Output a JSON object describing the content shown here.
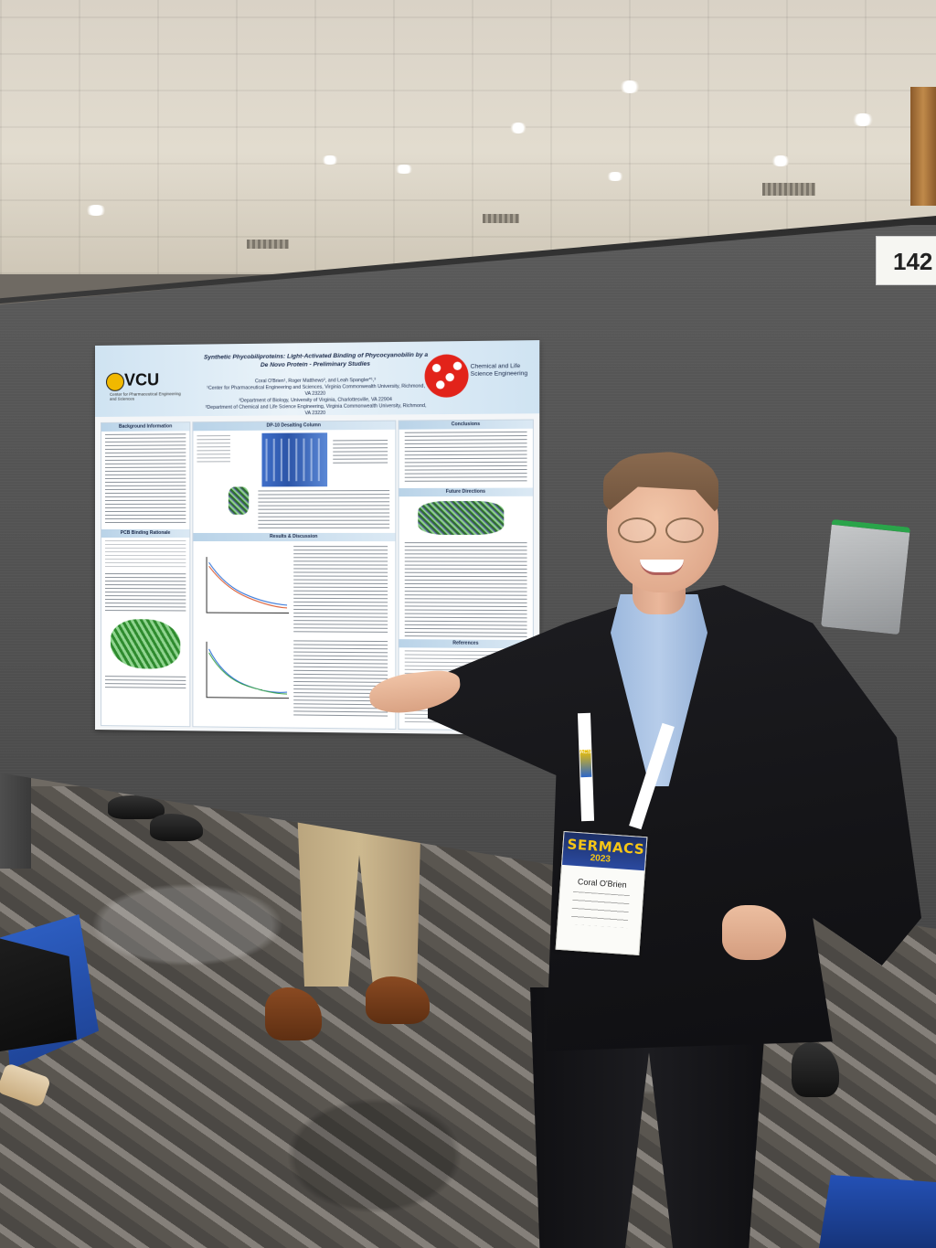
{
  "scene": {
    "board_number": "142"
  },
  "poster": {
    "title": "Synthetic Phycobiliproteins: Light-Activated Binding of Phycocyanobilin by a De Novo Protein - Preliminary Studies",
    "authors": "Coral O'Brien¹, Roger Matthews², and Leah Spangler*¹,³",
    "affiliation_1": "¹Center for Pharmaceutical Engineering and Sciences, Virginia Commonwealth University, Richmond, VA 23220",
    "affiliation_2": "²Department of Biology, University of Virginia, Charlottesville, VA 22904",
    "affiliation_3": "³Department of Chemical and Life Science Engineering, Virginia Commonwealth University, Richmond, VA 23220",
    "left_logo_text": "VCU",
    "left_logo_sub": "Center for Pharmaceutical Engineering and Sciences",
    "right_logo_text": "Chemical and Life Science Engineering",
    "sections": {
      "background": "Background Information",
      "pcb_binding": "PCB Binding Rationale",
      "desalting": "DP-10 Desalting Column",
      "results": "Results & Discussion",
      "conclusions": "Conclusions",
      "future": "Future Directions",
      "references": "References"
    }
  },
  "badge": {
    "event": "SERMACS",
    "year": "2023",
    "name": "Coral O'Brien"
  },
  "lanyard": {
    "logo": "ACS"
  },
  "colors": {
    "poster_header": "#cfe3f2",
    "cls_logo_red": "#e2231a",
    "vcu_gold": "#f1b800",
    "badge_navy": "#1c2f66",
    "badge_gold": "#f6c616"
  }
}
